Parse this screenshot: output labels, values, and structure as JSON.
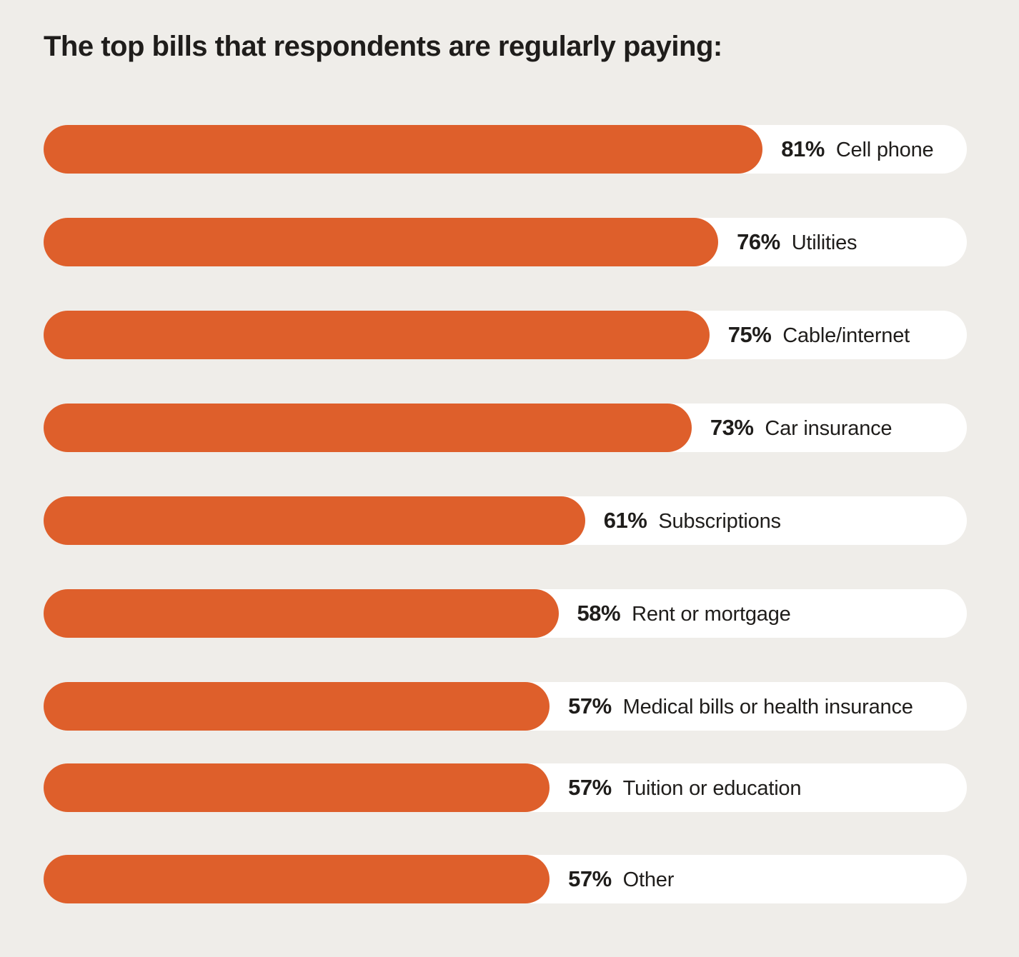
{
  "page": {
    "background_color": "#EFEDE9",
    "text_color": "#1F1D1B"
  },
  "chart_data": {
    "type": "bar",
    "orientation": "horizontal",
    "title": "The top bills that respondents are regularly paying:",
    "categories": [
      "Cell phone",
      "Utilities",
      "Cable/internet",
      "Car insurance",
      "Subscriptions",
      "Rent or mortgage",
      "Medical bills or health insurance",
      "Tuition or education",
      "Other"
    ],
    "values": [
      81,
      76,
      75,
      73,
      61,
      58,
      57,
      57,
      57
    ],
    "value_labels": [
      "81%",
      "76%",
      "75%",
      "73%",
      "61%",
      "58%",
      "57%",
      "57%",
      "57%"
    ],
    "unit": "%",
    "xlim": [
      0,
      104
    ],
    "grid": false,
    "legend_position": "none",
    "annotation_style": "value and category inside white track, right of bar fill",
    "colors": {
      "bar_fill": "#DE5F2B",
      "bar_track": "#FFFFFF",
      "background": "#EFEDE9",
      "text": "#1F1D1B"
    }
  }
}
